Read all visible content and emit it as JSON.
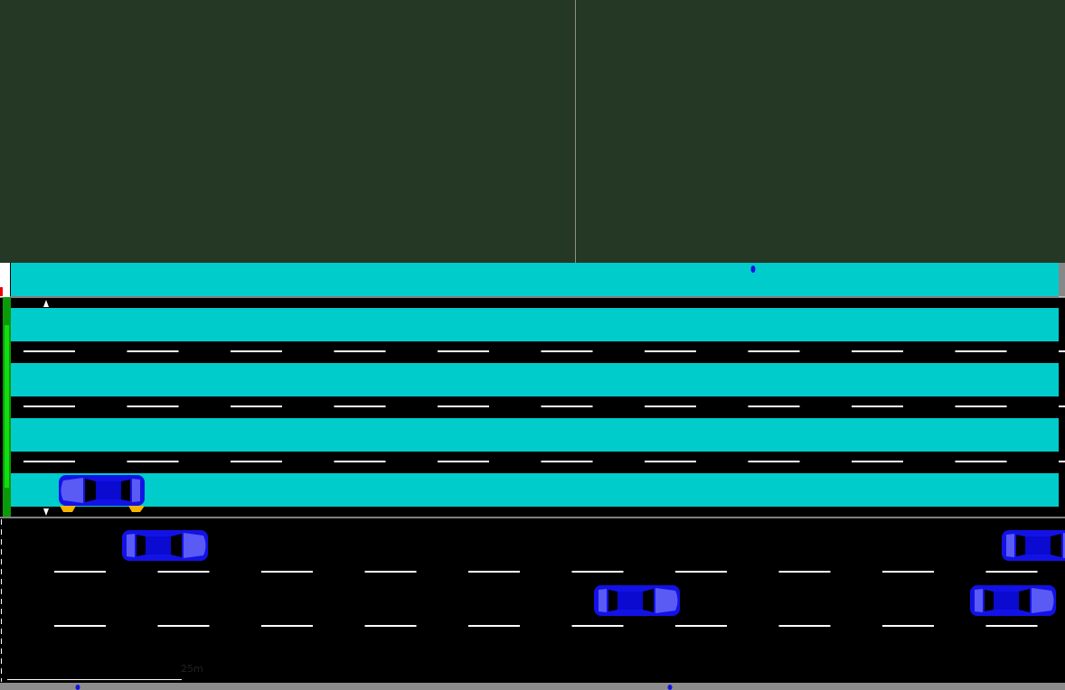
{
  "scale_bar": {
    "label": "25m"
  }
}
